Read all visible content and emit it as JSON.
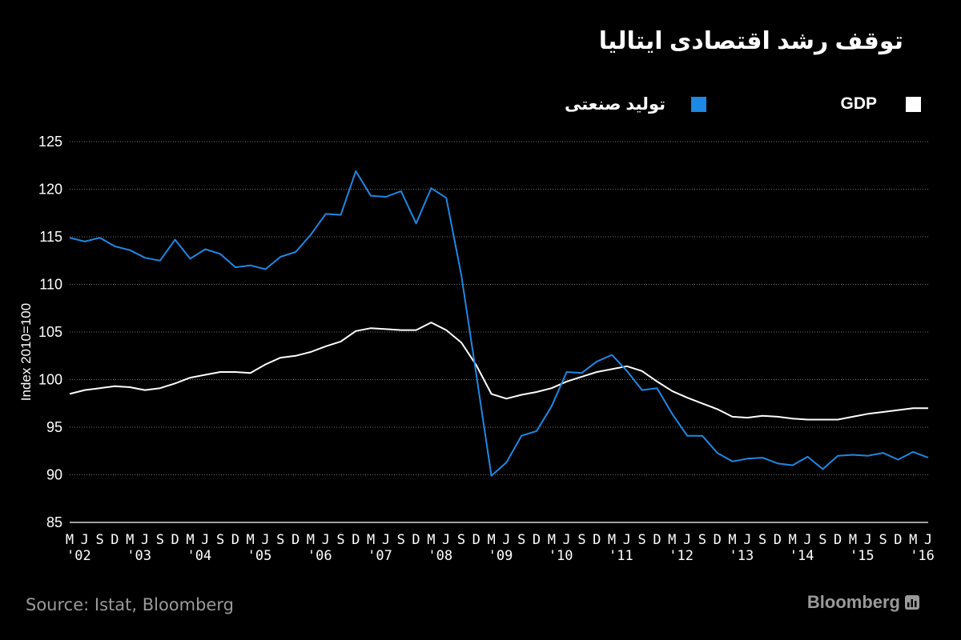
{
  "chart_data": {
    "type": "line",
    "title": "توقف رشد اقتصادی ایتالیا",
    "ylabel": "Index 2010=100",
    "ylim": [
      85,
      125
    ],
    "yticks": [
      85,
      90,
      95,
      100,
      105,
      110,
      115,
      120,
      125
    ],
    "grid": true,
    "legend_position": "top-right",
    "xtick_labels": [
      "M",
      "J",
      "S",
      "D",
      "M",
      "J",
      "S",
      "D",
      "M",
      "J",
      "S",
      "D",
      "M",
      "J",
      "S",
      "D",
      "M",
      "J",
      "S",
      "D",
      "M",
      "J",
      "S",
      "D",
      "M",
      "J",
      "S",
      "D",
      "M",
      "J",
      "S",
      "D",
      "M",
      "J",
      "S",
      "D",
      "M",
      "J",
      "S",
      "D",
      "M",
      "J",
      "S",
      "D",
      "M",
      "J",
      "S",
      "D",
      "M",
      "J",
      "S",
      "D",
      "M",
      "J",
      "S",
      "D",
      "M",
      "J"
    ],
    "year_labels": [
      {
        "label": "'02",
        "index": 0
      },
      {
        "label": "'03",
        "index": 4
      },
      {
        "label": "'04",
        "index": 8
      },
      {
        "label": "'05",
        "index": 12
      },
      {
        "label": "'06",
        "index": 16
      },
      {
        "label": "'07",
        "index": 20
      },
      {
        "label": "'08",
        "index": 24
      },
      {
        "label": "'09",
        "index": 28
      },
      {
        "label": "'10",
        "index": 32
      },
      {
        "label": "'11",
        "index": 36
      },
      {
        "label": "'12",
        "index": 40
      },
      {
        "label": "'13",
        "index": 44
      },
      {
        "label": "'14",
        "index": 48
      },
      {
        "label": "'15",
        "index": 52
      },
      {
        "label": "'16",
        "index": 56
      }
    ],
    "series": [
      {
        "name": "GDP",
        "color": "#ffffff",
        "values": [
          98.5,
          98.9,
          99.1,
          99.3,
          99.2,
          98.9,
          99.1,
          99.6,
          100.2,
          100.5,
          100.8,
          100.8,
          100.7,
          101.6,
          102.3,
          102.5,
          102.9,
          103.5,
          104.0,
          105.1,
          105.4,
          105.3,
          105.2,
          105.2,
          106.0,
          105.2,
          103.9,
          101.5,
          98.5,
          98.0,
          98.4,
          98.7,
          99.1,
          99.8,
          100.3,
          100.8,
          101.1,
          101.4,
          100.9,
          99.8,
          98.8,
          98.1,
          97.5,
          96.9,
          96.1,
          96.0,
          96.2,
          96.1,
          95.9,
          95.8,
          95.8,
          95.8,
          96.1,
          96.4,
          96.6,
          96.8,
          97.0,
          97.0
        ]
      },
      {
        "name": "تولید صنعتی",
        "color": "#1e88e5",
        "values": [
          114.9,
          114.5,
          114.9,
          114.0,
          113.6,
          112.8,
          112.5,
          114.7,
          112.7,
          113.7,
          113.2,
          111.8,
          112.0,
          111.6,
          112.9,
          113.4,
          115.2,
          117.4,
          117.3,
          121.9,
          119.3,
          119.2,
          119.8,
          116.4,
          120.1,
          119.1,
          111.0,
          100.5,
          89.9,
          91.3,
          94.1,
          94.6,
          97.2,
          100.8,
          100.7,
          101.9,
          102.6,
          100.9,
          98.9,
          99.1,
          96.4,
          94.1,
          94.1,
          92.3,
          91.4,
          91.7,
          91.8,
          91.2,
          91.0,
          91.9,
          90.6,
          92.0,
          92.1,
          92.0,
          92.3,
          91.6,
          92.4,
          91.8
        ]
      }
    ]
  },
  "legend": {
    "gdp_label": "GDP",
    "ip_label": "تولید صنعتی",
    "gdp_color": "#ffffff",
    "ip_color": "#1e88e5"
  },
  "footer": {
    "source": "Source: Istat, Bloomberg",
    "brand": "Bloomberg"
  }
}
